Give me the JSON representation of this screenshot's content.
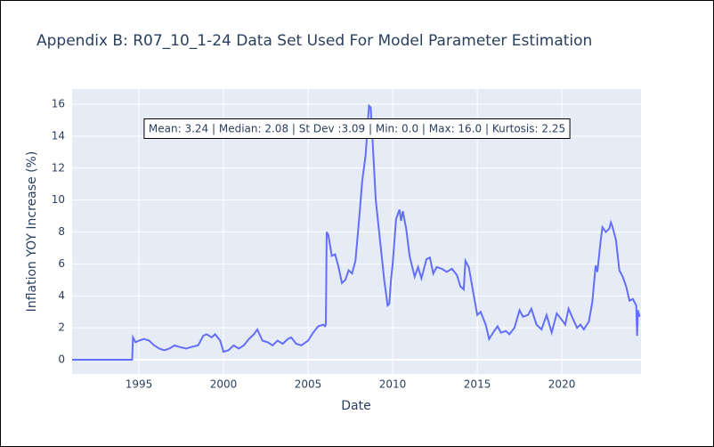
{
  "chart_data": {
    "type": "line",
    "title": "Appendix B: R07_10_1-24 Data Set Used For Model Parameter Estimation",
    "x_label": "Date",
    "y_label": "Inflation YOY Increase (%)",
    "annotation": "Mean: 3.24 | Median: 2.08 | St Dev :3.09 | Min: 0.0 | Max: 16.0 | Kurtosis: 2.25",
    "color": "#636efa",
    "grid": true,
    "xlim": [
      1991.05,
      2024.68
    ],
    "ylim": [
      -0.89,
      16.95
    ],
    "xticks": [
      1995,
      2000,
      2005,
      2010,
      2015,
      2020
    ],
    "yticks": [
      0,
      2,
      4,
      6,
      8,
      10,
      12,
      14,
      16
    ],
    "x": [
      1991.05,
      1994.6,
      1994.65,
      1994.8,
      1995,
      1995.3,
      1995.6,
      1995.9,
      1996.2,
      1996.5,
      1996.8,
      1997.1,
      1997.4,
      1997.8,
      1998.1,
      1998.5,
      1998.8,
      1999.0,
      1999.3,
      1999.5,
      1999.8,
      2000.0,
      2000.3,
      2000.6,
      2000.9,
      2001.2,
      2001.5,
      2001.8,
      2002.0,
      2002.3,
      2002.6,
      2002.9,
      2003.2,
      2003.5,
      2003.8,
      2004.0,
      2004.3,
      2004.6,
      2005.0,
      2005.3,
      2005.6,
      2005.9,
      2006.0,
      2006.05,
      2006.1,
      2006.2,
      2006.4,
      2006.6,
      2006.8,
      2007.0,
      2007.2,
      2007.4,
      2007.6,
      2007.8,
      2008.0,
      2008.2,
      2008.4,
      2008.6,
      2008.7,
      2008.8,
      2009.0,
      2009.2,
      2009.5,
      2009.7,
      2009.8,
      2009.9,
      2010.0,
      2010.2,
      2010.4,
      2010.5,
      2010.6,
      2010.8,
      2011.0,
      2011.3,
      2011.5,
      2011.7,
      2012.0,
      2012.2,
      2012.4,
      2012.6,
      2012.9,
      2013.2,
      2013.5,
      2013.8,
      2014.0,
      2014.2,
      2014.3,
      2014.5,
      2014.8,
      2015.0,
      2015.2,
      2015.5,
      2015.7,
      2016.0,
      2016.2,
      2016.4,
      2016.7,
      2016.9,
      2017.2,
      2017.5,
      2017.7,
      2018.0,
      2018.2,
      2018.5,
      2018.8,
      2019.1,
      2019.4,
      2019.7,
      2020.0,
      2020.2,
      2020.4,
      2020.6,
      2020.9,
      2021.1,
      2021.3,
      2021.6,
      2021.8,
      2022.0,
      2022.1,
      2022.3,
      2022.4,
      2022.6,
      2022.8,
      2022.9,
      2023.0,
      2023.2,
      2023.4,
      2023.6,
      2023.8,
      2024.0,
      2024.2,
      2024.4,
      2024.45,
      2024.5,
      2024.6
    ],
    "values": [
      0,
      0,
      1.4,
      1.1,
      1.2,
      1.3,
      1.2,
      0.9,
      0.7,
      0.6,
      0.7,
      0.9,
      0.8,
      0.7,
      0.8,
      0.9,
      1.5,
      1.6,
      1.4,
      1.6,
      1.2,
      0.5,
      0.6,
      0.9,
      0.7,
      0.9,
      1.3,
      1.6,
      1.9,
      1.2,
      1.1,
      0.9,
      1.2,
      1.0,
      1.3,
      1.4,
      1.0,
      0.9,
      1.2,
      1.7,
      2.1,
      2.2,
      2.1,
      2.2,
      8.0,
      7.8,
      6.5,
      6.6,
      5.8,
      4.8,
      5.0,
      5.6,
      5.4,
      6.2,
      8.6,
      11.2,
      12.8,
      15.9,
      15.8,
      14.0,
      10.0,
      8.0,
      5.0,
      3.4,
      3.5,
      5.0,
      6.0,
      8.8,
      9.4,
      8.7,
      9.3,
      8.2,
      6.5,
      5.2,
      5.8,
      5.1,
      6.3,
      6.4,
      5.4,
      5.8,
      5.7,
      5.5,
      5.7,
      5.3,
      4.6,
      4.4,
      6.2,
      5.8,
      4.0,
      2.8,
      3.0,
      2.2,
      1.3,
      1.8,
      2.1,
      1.7,
      1.8,
      1.6,
      2.0,
      3.1,
      2.7,
      2.8,
      3.2,
      2.2,
      1.9,
      2.8,
      1.7,
      2.9,
      2.5,
      2.2,
      3.2,
      2.7,
      2.0,
      2.2,
      1.9,
      2.4,
      3.6,
      5.9,
      5.5,
      7.5,
      8.3,
      8.0,
      8.2,
      8.6,
      8.3,
      7.5,
      5.6,
      5.2,
      4.6,
      3.7,
      3.8,
      3.4,
      1.5,
      3.1,
      2.7
    ]
  }
}
